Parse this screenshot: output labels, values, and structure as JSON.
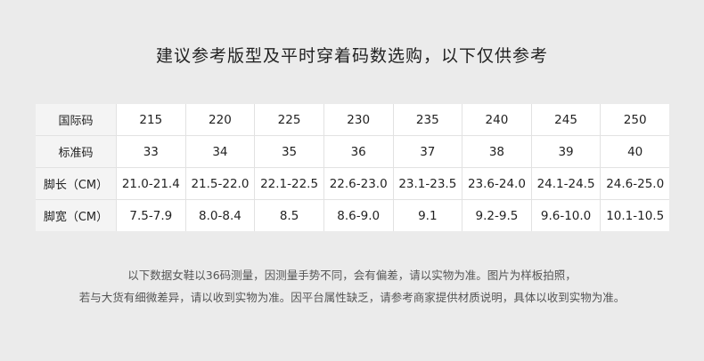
{
  "title": "建议参考版型及平时穿着码数选购，以下仅供参考",
  "table": {
    "rows": [
      {
        "label": "国际码",
        "values": [
          "215",
          "220",
          "225",
          "230",
          "235",
          "240",
          "245",
          "250"
        ]
      },
      {
        "label": "标准码",
        "values": [
          "33",
          "34",
          "35",
          "36",
          "37",
          "38",
          "39",
          "40"
        ]
      },
      {
        "label": "脚长（CM）",
        "values": [
          "21.0-21.4",
          "21.5-22.0",
          "22.1-22.5",
          "22.6-23.0",
          "23.1-23.5",
          "23.6-24.0",
          "24.1-24.5",
          "24.6-25.0"
        ]
      },
      {
        "label": "脚宽（CM）",
        "values": [
          "7.5-7.9",
          "8.0-8.4",
          "8.5",
          "8.6-9.0",
          "9.1",
          "9.2-9.5",
          "9.6-10.0",
          "10.1-10.5"
        ]
      }
    ]
  },
  "notes": [
    "以下数据女鞋以36码测量，因测量手势不同，会有偏差，请以实物为准。图片为样板拍照，",
    "若与大货有细微差异，请以收到实物为准。因平台属性缺乏，请参考商家提供材质说明，具体以收到实物为准。"
  ]
}
